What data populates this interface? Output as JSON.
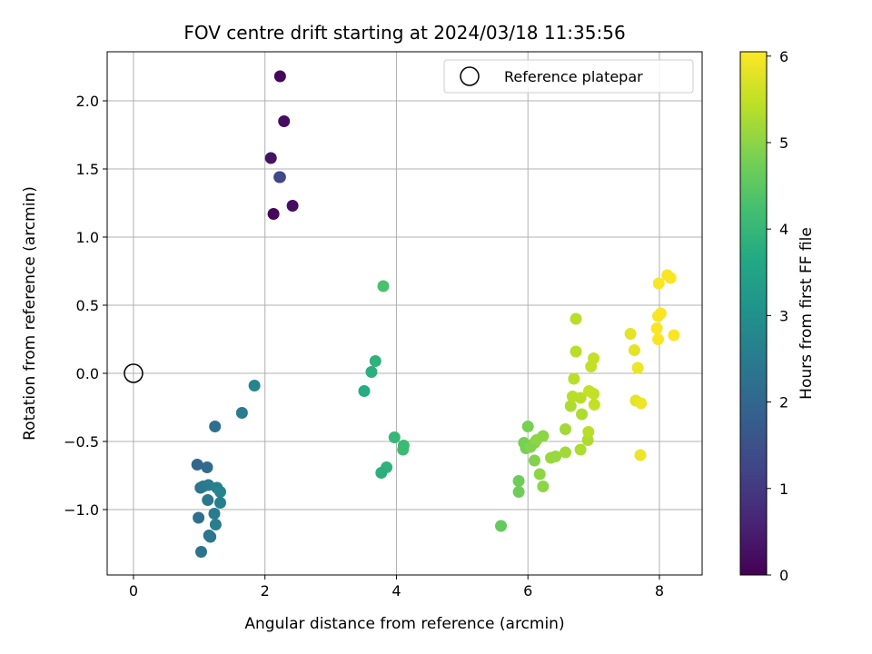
{
  "chart_data": {
    "type": "scatter",
    "title": "FOV centre drift starting at 2024/03/18 11:35:56",
    "xlabel": "Angular distance from reference (arcmin)",
    "ylabel": "Rotation from reference (arcmin)",
    "xlim": [
      -0.4,
      8.65
    ],
    "ylim": [
      -1.48,
      2.36
    ],
    "xticks": [
      0,
      2,
      4,
      6,
      8
    ],
    "yticks": [
      -1.0,
      -0.5,
      0.0,
      0.5,
      1.0,
      1.5,
      2.0
    ],
    "ytick_labels": [
      "−1.0",
      "−0.5",
      "0.0",
      "0.5",
      "1.0",
      "1.5",
      "2.0"
    ],
    "grid": true,
    "colormap": "viridis",
    "colorbar": {
      "label": "Hours from first FF file",
      "min": 0,
      "max": 6.05,
      "ticks": [
        0,
        1,
        2,
        3,
        4,
        5,
        6
      ]
    },
    "legend": {
      "position": "top-right",
      "entries": [
        "Reference platepar"
      ]
    },
    "reference": {
      "x": 0,
      "y": 0,
      "label": "Reference platepar"
    },
    "series": [
      {
        "points": [
          {
            "x": 2.23,
            "y": 2.18,
            "c": 0.1
          },
          {
            "x": 2.29,
            "y": 1.85,
            "c": 0.2
          },
          {
            "x": 2.09,
            "y": 1.58,
            "c": 0.3
          },
          {
            "x": 2.23,
            "y": 1.44,
            "c": 1.2
          },
          {
            "x": 2.22,
            "y": 1.44,
            "c": 1.3
          },
          {
            "x": 2.13,
            "y": 1.17,
            "c": 0.1
          },
          {
            "x": 2.42,
            "y": 1.23,
            "c": 0.2
          },
          {
            "x": 1.84,
            "y": -0.09,
            "c": 2.7
          },
          {
            "x": 1.65,
            "y": -0.29,
            "c": 2.5
          },
          {
            "x": 1.24,
            "y": -0.39,
            "c": 2.2
          },
          {
            "x": 0.97,
            "y": -0.67,
            "c": 2.0
          },
          {
            "x": 1.12,
            "y": -0.69,
            "c": 2.1
          },
          {
            "x": 1.02,
            "y": -0.84,
            "c": 2.3
          },
          {
            "x": 1.06,
            "y": -0.83,
            "c": 2.4
          },
          {
            "x": 1.14,
            "y": -0.82,
            "c": 2.5
          },
          {
            "x": 1.27,
            "y": -0.84,
            "c": 2.6
          },
          {
            "x": 1.32,
            "y": -0.87,
            "c": 2.7
          },
          {
            "x": 1.13,
            "y": -0.93,
            "c": 2.4
          },
          {
            "x": 1.32,
            "y": -0.95,
            "c": 2.6
          },
          {
            "x": 1.23,
            "y": -1.03,
            "c": 2.5
          },
          {
            "x": 0.99,
            "y": -1.06,
            "c": 2.2
          },
          {
            "x": 1.25,
            "y": -1.11,
            "c": 2.6
          },
          {
            "x": 1.15,
            "y": -1.19,
            "c": 2.3
          },
          {
            "x": 1.17,
            "y": -1.2,
            "c": 2.4
          },
          {
            "x": 1.03,
            "y": -1.31,
            "c": 2.3
          },
          {
            "x": 3.8,
            "y": 0.64,
            "c": 4.3
          },
          {
            "x": 3.68,
            "y": 0.09,
            "c": 3.9
          },
          {
            "x": 3.62,
            "y": 0.01,
            "c": 3.8
          },
          {
            "x": 3.51,
            "y": -0.13,
            "c": 3.7
          },
          {
            "x": 3.97,
            "y": -0.47,
            "c": 4.0
          },
          {
            "x": 4.11,
            "y": -0.53,
            "c": 4.1
          },
          {
            "x": 4.1,
            "y": -0.56,
            "c": 4.1
          },
          {
            "x": 3.85,
            "y": -0.69,
            "c": 3.9
          },
          {
            "x": 3.77,
            "y": -0.73,
            "c": 3.8
          },
          {
            "x": 5.59,
            "y": -1.12,
            "c": 4.6
          },
          {
            "x": 5.86,
            "y": -0.79,
            "c": 4.7
          },
          {
            "x": 5.86,
            "y": -0.87,
            "c": 4.7
          },
          {
            "x": 6.0,
            "y": -0.39,
            "c": 4.8
          },
          {
            "x": 5.94,
            "y": -0.51,
            "c": 4.8
          },
          {
            "x": 5.97,
            "y": -0.55,
            "c": 4.8
          },
          {
            "x": 6.04,
            "y": -0.54,
            "c": 4.9
          },
          {
            "x": 6.1,
            "y": -0.51,
            "c": 4.9
          },
          {
            "x": 6.13,
            "y": -0.49,
            "c": 5.0
          },
          {
            "x": 6.23,
            "y": -0.46,
            "c": 5.0
          },
          {
            "x": 6.1,
            "y": -0.64,
            "c": 4.9
          },
          {
            "x": 6.18,
            "y": -0.74,
            "c": 5.0
          },
          {
            "x": 6.23,
            "y": -0.83,
            "c": 5.0
          },
          {
            "x": 6.35,
            "y": -0.62,
            "c": 5.1
          },
          {
            "x": 6.42,
            "y": -0.61,
            "c": 5.1
          },
          {
            "x": 6.57,
            "y": -0.58,
            "c": 5.2
          },
          {
            "x": 6.57,
            "y": -0.41,
            "c": 5.2
          },
          {
            "x": 6.8,
            "y": -0.56,
            "c": 5.3
          },
          {
            "x": 6.91,
            "y": -0.49,
            "c": 5.3
          },
          {
            "x": 6.92,
            "y": -0.43,
            "c": 5.4
          },
          {
            "x": 6.82,
            "y": -0.3,
            "c": 5.3
          },
          {
            "x": 6.65,
            "y": -0.24,
            "c": 5.3
          },
          {
            "x": 6.68,
            "y": -0.17,
            "c": 5.4
          },
          {
            "x": 6.8,
            "y": -0.18,
            "c": 5.4
          },
          {
            "x": 6.93,
            "y": -0.13,
            "c": 5.5
          },
          {
            "x": 7.0,
            "y": -0.15,
            "c": 5.5
          },
          {
            "x": 7.01,
            "y": -0.23,
            "c": 5.5
          },
          {
            "x": 6.7,
            "y": -0.04,
            "c": 5.4
          },
          {
            "x": 6.96,
            "y": 0.05,
            "c": 5.5
          },
          {
            "x": 7.0,
            "y": 0.11,
            "c": 5.5
          },
          {
            "x": 6.73,
            "y": 0.16,
            "c": 5.4
          },
          {
            "x": 6.73,
            "y": 0.4,
            "c": 5.4
          },
          {
            "x": 7.56,
            "y": 0.29,
            "c": 5.8
          },
          {
            "x": 7.62,
            "y": 0.17,
            "c": 5.8
          },
          {
            "x": 7.67,
            "y": 0.04,
            "c": 5.9
          },
          {
            "x": 7.64,
            "y": -0.2,
            "c": 5.8
          },
          {
            "x": 7.72,
            "y": -0.22,
            "c": 5.9
          },
          {
            "x": 7.71,
            "y": -0.6,
            "c": 5.9
          },
          {
            "x": 7.96,
            "y": 0.33,
            "c": 6.0
          },
          {
            "x": 7.98,
            "y": 0.25,
            "c": 6.0
          },
          {
            "x": 7.98,
            "y": 0.42,
            "c": 6.0
          },
          {
            "x": 8.02,
            "y": 0.44,
            "c": 6.0
          },
          {
            "x": 7.99,
            "y": 0.66,
            "c": 6.0
          },
          {
            "x": 8.12,
            "y": 0.72,
            "c": 6.0
          },
          {
            "x": 8.17,
            "y": 0.7,
            "c": 6.0
          },
          {
            "x": 8.22,
            "y": 0.28,
            "c": 6.0
          }
        ]
      }
    ]
  }
}
